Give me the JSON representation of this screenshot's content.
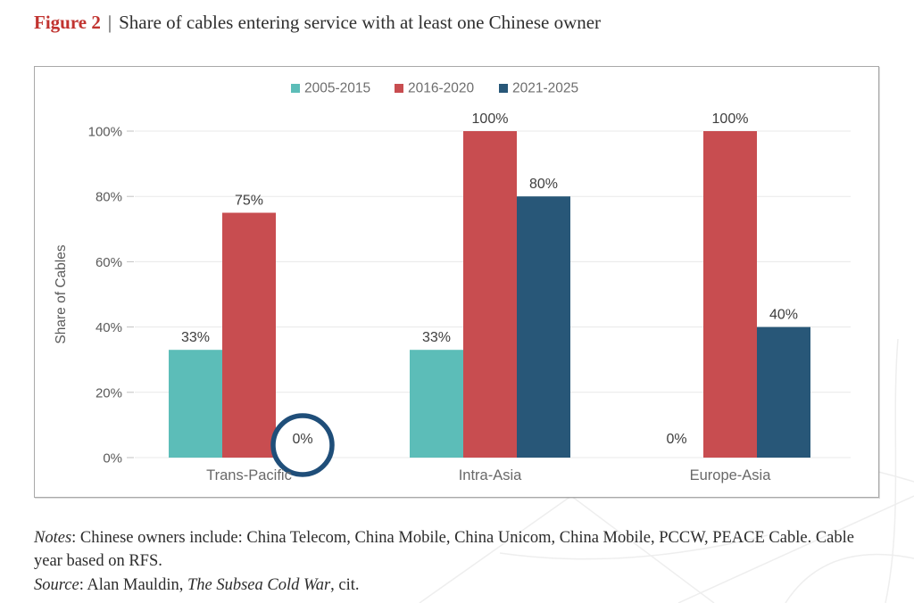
{
  "figure": {
    "label": "Figure 2",
    "separator": "|",
    "title": "Share of cables entering service with at least one Chinese owner"
  },
  "chart_data": {
    "type": "bar",
    "title": "Share of cables entering service with at least one Chinese owner",
    "categories": [
      "Trans-Pacific",
      "Intra-Asia",
      "Europe-Asia"
    ],
    "series": [
      {
        "name": "2005-2015",
        "color": "#5cbdb8",
        "values": [
          33,
          33,
          0
        ]
      },
      {
        "name": "2016-2020",
        "color": "#c84d50",
        "values": [
          75,
          100,
          100
        ]
      },
      {
        "name": "2021-2025",
        "color": "#285778",
        "values": [
          0,
          80,
          40
        ]
      }
    ],
    "xlabel": "",
    "ylabel": "Share of Cables",
    "ylim": [
      0,
      100
    ],
    "yticks": [
      0,
      20,
      40,
      60,
      80,
      100
    ],
    "ytick_suffix": "%",
    "grid": true,
    "legend_position": "top-center",
    "data_labels": true,
    "annotation": {
      "shape": "circle",
      "category": "Trans-Pacific",
      "series": "2021-2025",
      "label": "0%",
      "color": "#1f4e79"
    },
    "text_colors": {
      "tick_label": "#5a5a5a",
      "axis_title": "#5a5a5a",
      "legend_text": "#6e6e6e",
      "data_label": "#3e3e3e",
      "category_label": "#696969"
    }
  },
  "notes": {
    "label": "Notes",
    "text": ": Chinese owners include: China Telecom, China Mobile, China Unicom, China Mobile, PCCW, PEACE Cable. Cable year based on RFS."
  },
  "source": {
    "label": "Source",
    "text_before": ": Alan Mauldin, ",
    "work": "The Subsea Cold War",
    "text_after": ", cit."
  }
}
